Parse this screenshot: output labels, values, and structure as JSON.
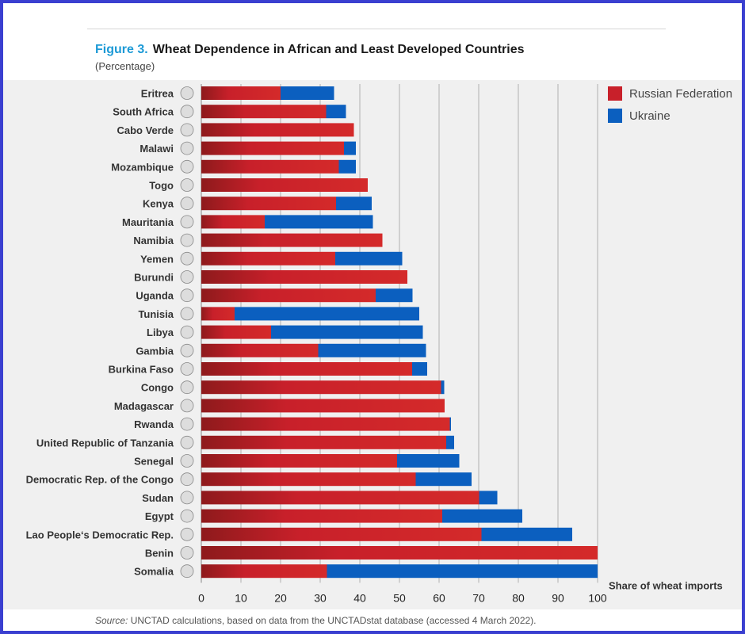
{
  "header": {
    "figure_label": "Figure 3.",
    "title": "Wheat Dependence in African and Least Developed Countries",
    "subtitle": "(Percentage)"
  },
  "footer": {
    "source_label": "Source:",
    "source_text": "UNCTAD calculations, based on data from the UNCTADstat database (accessed 4 March 2022)."
  },
  "colors": {
    "russia": "#c8202a",
    "ukraine": "#0b5fbf",
    "grid": "#b0b0b0"
  },
  "chart_data": {
    "type": "bar",
    "orientation": "horizontal",
    "stacked": true,
    "title": "Wheat Dependence in African and Least Developed Countries",
    "subtitle": "(Percentage)",
    "xlabel": "Share of wheat imports",
    "xlim": [
      0,
      100
    ],
    "xticks": [
      0,
      10,
      20,
      30,
      40,
      50,
      60,
      70,
      80,
      90,
      100
    ],
    "grid": true,
    "legend": "top-right",
    "categories": [
      "Eritrea",
      "South Africa",
      "Cabo Verde",
      "Malawi",
      "Mozambique",
      "Togo",
      "Kenya",
      "Mauritania",
      "Namibia",
      "Yemen",
      "Burundi",
      "Uganda",
      "Tunisia",
      "Libya",
      "Gambia",
      "Burkina Faso",
      "Congo",
      "Madagascar",
      "Rwanda",
      "United Republic of Tanzania",
      "Senegal",
      "Democratic Rep. of the Congo",
      "Sudan",
      "Egypt",
      "Lao People‘s Democratic Rep.",
      "Benin",
      "Somalia"
    ],
    "series": [
      {
        "name": "Russian Federation",
        "values": [
          20,
          31.5,
          38.5,
          36,
          34.7,
          42,
          34,
          16,
          45.7,
          33.8,
          52,
          44,
          8.4,
          17.6,
          29.5,
          53.2,
          60.5,
          61.4,
          62.7,
          61.8,
          49.4,
          54.1,
          70.1,
          60.8,
          70.7,
          100,
          31.7
        ]
      },
      {
        "name": "Ukraine",
        "values": [
          13.5,
          5,
          0,
          3,
          4.3,
          0,
          9,
          27.3,
          0,
          16.9,
          0,
          9.3,
          46.6,
          38.3,
          27.2,
          3.8,
          0.8,
          0,
          0.3,
          2,
          15.7,
          14.1,
          4.6,
          20.2,
          22.9,
          0,
          68.3
        ]
      }
    ]
  }
}
